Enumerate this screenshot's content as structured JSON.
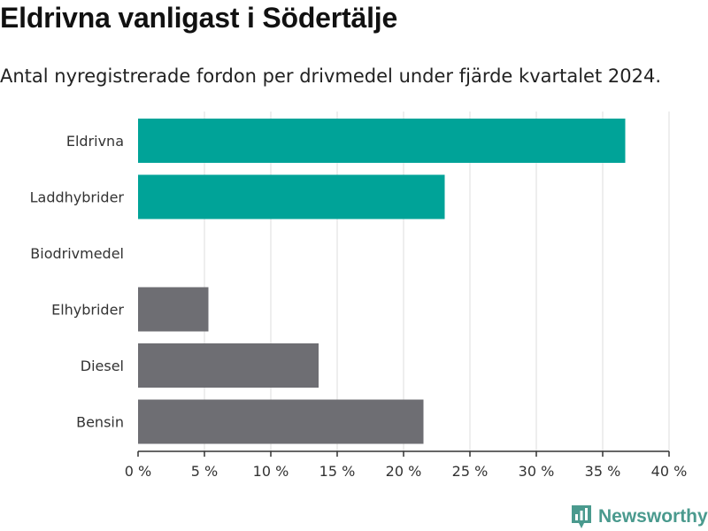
{
  "header": {
    "title": "Eldrivna vanligast i Södertälje",
    "subtitle": "Antal nyregistrerade fordon per drivmedel under fjärde kvartalet 2024."
  },
  "chart_data": {
    "type": "bar",
    "orientation": "horizontal",
    "title": "Eldrivna vanligast i Södertälje",
    "subtitle": "Antal nyregistrerade fordon per drivmedel under fjärde kvartalet 2024.",
    "xlabel": "",
    "ylabel": "",
    "categories": [
      "Eldrivna",
      "Laddhybrider",
      "Biodrivmedel",
      "Elhybrider",
      "Diesel",
      "Bensin"
    ],
    "values": [
      36.7,
      23.1,
      0,
      5.3,
      13.6,
      21.5
    ],
    "bar_colors": [
      "#00a398",
      "#00a398",
      "#6e6e73",
      "#6e6e73",
      "#6e6e73",
      "#6e6e73"
    ],
    "xlim": [
      0,
      40
    ],
    "xticks": [
      0,
      5,
      10,
      15,
      20,
      25,
      30,
      35,
      40
    ],
    "xtick_labels": [
      "0 %",
      "5 %",
      "10 %",
      "15 %",
      "20 %",
      "25 %",
      "30 %",
      "35 %",
      "40 %"
    ],
    "grid": true,
    "gridline_color": "#dddddd"
  },
  "branding": {
    "logo_name": "Newsworthy",
    "logo_color": "#4a9a8e"
  }
}
